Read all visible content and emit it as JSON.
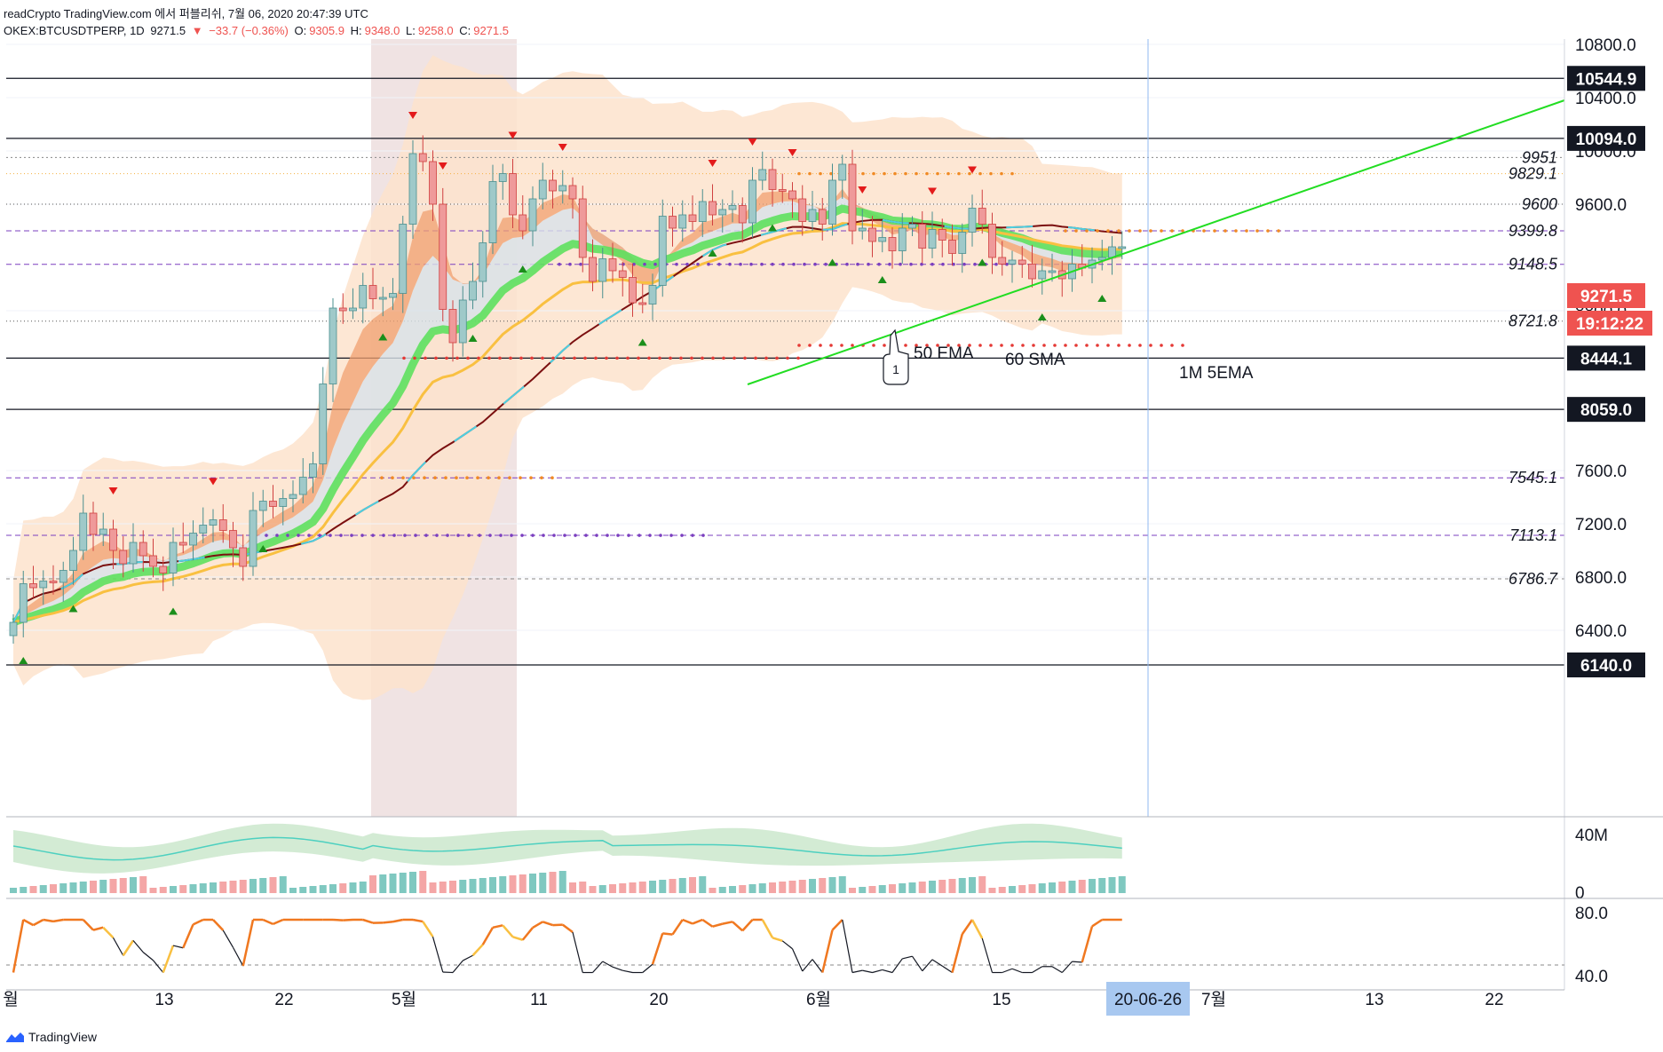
{
  "header": {
    "line1": "readCrypto TradingView.com 에서 퍼블리쉬, 7월 06, 2020 20:47:39 UTC",
    "symbol": "OKEX:BTCUSDTPERP, 1D",
    "last": "9271.5",
    "change": "−33.7 (−0.36%)",
    "o_label": "O:",
    "o_val": "9305.9",
    "h_label": "H:",
    "h_val": "9348.0",
    "l_label": "L:",
    "l_val": "9258.0",
    "c_label": "C:",
    "c_val": "9271.5"
  },
  "brand": "TradingView",
  "colors": {
    "up": "#9fc9c9",
    "down": "#ef9a9a",
    "green_ribbon": "#5ee05e",
    "orange_ribbon": "#f0a070",
    "sma60": "#7b1010",
    "sma60_alt": "#4dd0e1",
    "ema50": "#f9c041",
    "trendline": "#22dd22",
    "band": "#fde0c8"
  },
  "chart_data": {
    "type": "candlestick",
    "price_axis": {
      "ticks": [
        "10800.0",
        "10400.0",
        "10000.0",
        "9600.0",
        "8800.0",
        "7600.0",
        "7200.0",
        "6800.0",
        "6400.0"
      ],
      "ylim": [
        6040,
        10950
      ]
    },
    "date_axis": {
      "ticks": [
        "월",
        "13",
        "22",
        "5월",
        "11",
        "20",
        "6월",
        "15",
        "7월",
        "13",
        "22"
      ],
      "cursor_label": "20-06-26"
    },
    "horizontal_levels": [
      {
        "value": 10544.9,
        "label": "10544.9",
        "tag": true
      },
      {
        "value": 10094.0,
        "label": "10094.0",
        "tag": true
      },
      {
        "value": 8444.1,
        "label": "8444.1",
        "tag": true
      },
      {
        "value": 8059.0,
        "label": "8059.0",
        "tag": true
      },
      {
        "value": 6140.0,
        "label": "6140.0",
        "tag": true
      }
    ],
    "note_levels": [
      {
        "value": 9951,
        "label": "9951"
      },
      {
        "value": 9829.1,
        "label": "9829.1"
      },
      {
        "value": 9600,
        "label": "9600"
      },
      {
        "value": 9399.8,
        "label": "9399.8"
      },
      {
        "value": 9148.5,
        "label": "9148.5"
      },
      {
        "value": 8721.8,
        "label": "8721.8"
      },
      {
        "value": 7545.1,
        "label": "7545.1"
      },
      {
        "value": 7113.1,
        "label": "7113.1"
      },
      {
        "value": 6786.7,
        "label": "6786.7"
      }
    ],
    "last_price": {
      "value": 9271.5,
      "label": "9271.5",
      "countdown": "19:12:22"
    },
    "annotations": [
      "50 EMA",
      "60 SMA",
      "1M 5EMA"
    ],
    "bubble_label": "1",
    "closes": [
      6460,
      6750,
      6720,
      6770,
      6760,
      6850,
      7000,
      7280,
      7120,
      7160,
      7000,
      6900,
      7060,
      6960,
      6880,
      6830,
      7060,
      7040,
      7130,
      7190,
      7230,
      7150,
      7020,
      6880,
      7300,
      7370,
      7330,
      7390,
      7420,
      7550,
      7650,
      8250,
      8820,
      8800,
      8820,
      8990,
      8890,
      8900,
      8930,
      9450,
      9980,
      9920,
      9600,
      8810,
      8560,
      8880,
      9020,
      9310,
      9770,
      9830,
      9520,
      9400,
      9640,
      9780,
      9700,
      9740,
      9640,
      9200,
      9020,
      9190,
      9100,
      9050,
      8860,
      8850,
      8990,
      9510,
      9420,
      9520,
      9470,
      9620,
      9520,
      9560,
      9590,
      9460,
      9780,
      9860,
      9710,
      9700,
      9640,
      9470,
      9560,
      9450,
      9780,
      9900,
      9400,
      9420,
      9320,
      9350,
      9250,
      9420,
      9450,
      9270,
      9410,
      9330,
      9230,
      9390,
      9570,
      9450,
      9200,
      9150,
      9180,
      9150,
      9040,
      9100,
      9100,
      9040,
      9150,
      9120,
      9180,
      9200,
      9280,
      9280
    ],
    "volume_axis": {
      "ticks": [
        "40M",
        "0"
      ]
    },
    "osc_axis": {
      "ticks": [
        "80.0",
        "40.0"
      ]
    }
  }
}
